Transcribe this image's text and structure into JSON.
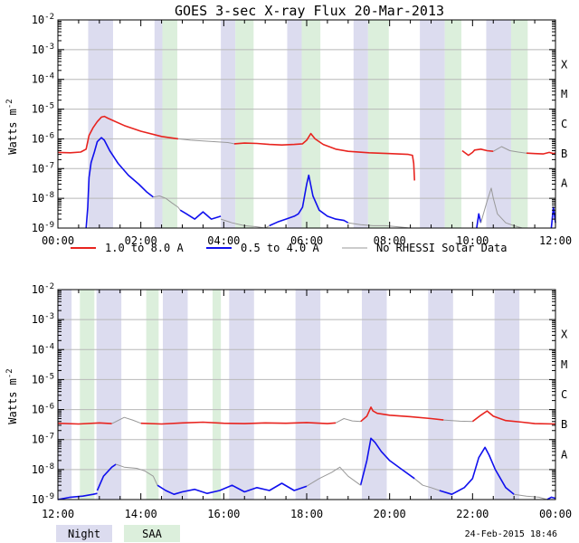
{
  "title": "GOES 3-sec X-ray Flux  20-Mar-2013",
  "footer_date": "24-Feb-2015 18:46",
  "colors": {
    "long_channel": "#e8241f",
    "short_channel": "#1010ee",
    "no_rhessi": "#999999",
    "night_band": "#dcdcef",
    "saa_band": "#dcefdc",
    "gridline": "#b8b8b8"
  },
  "legend": {
    "long_channel": "1.0 to 8.0 A",
    "short_channel": "0.5 to 4.0 A",
    "no_rhessi": "No RHESSI Solar Data",
    "night": "Night",
    "saa": "SAA"
  },
  "chart_data": [
    {
      "type": "line",
      "panel": "top",
      "title": "GOES 3-sec X-ray Flux  20-Mar-2013",
      "xlabel": "",
      "ylabel": "Watts m^-2",
      "ylabel_base": "Watts m",
      "ylabel_exp": "-2",
      "y_scale": "log",
      "ylim": [
        1e-09,
        0.01
      ],
      "xlim_hours": [
        0,
        12
      ],
      "x_tick_labels": [
        "00:00",
        "02:00",
        "04:00",
        "06:00",
        "08:00",
        "10:00",
        "12:00"
      ],
      "y_tick_labels": [
        {
          "base": "10",
          "exp": "-9"
        },
        {
          "base": "10",
          "exp": "-8"
        },
        {
          "base": "10",
          "exp": "-7"
        },
        {
          "base": "10",
          "exp": "-6"
        },
        {
          "base": "10",
          "exp": "-5"
        },
        {
          "base": "10",
          "exp": "-4"
        },
        {
          "base": "10",
          "exp": "-3"
        },
        {
          "base": "10",
          "exp": "-2"
        }
      ],
      "flare_classes": [
        "A",
        "B",
        "C",
        "M",
        "X"
      ],
      "night_bands_hours": [
        [
          0.73,
          1.33
        ],
        [
          2.33,
          2.52
        ],
        [
          3.93,
          4.28
        ],
        [
          5.53,
          5.88
        ],
        [
          7.13,
          7.48
        ],
        [
          8.73,
          9.33
        ],
        [
          10.33,
          10.93
        ]
      ],
      "saa_bands_hours": [
        [
          2.52,
          2.88
        ],
        [
          4.28,
          4.72
        ],
        [
          5.88,
          6.33
        ],
        [
          7.48,
          7.98
        ],
        [
          9.33,
          9.73
        ],
        [
          10.93,
          11.33
        ]
      ],
      "series": [
        {
          "name": "1.0 to 8.0 A",
          "color": "#e8241f",
          "segments": [
            {
              "x": [
                0.0,
                0.3,
                0.55,
                0.68,
                0.75,
                0.85,
                0.95,
                1.05,
                1.12,
                1.2,
                1.35,
                1.6,
                2.0,
                2.5,
                2.9
              ],
              "y": [
                3.5e-07,
                3.4e-07,
                3.6e-07,
                4.5e-07,
                1.3e-06,
                2.4e-06,
                3.8e-06,
                5.4e-06,
                5.7e-06,
                5e-06,
                4e-06,
                2.8e-06,
                1.8e-06,
                1.2e-06,
                1e-06
              ]
            },
            {
              "x": [
                4.25,
                4.5,
                4.8,
                5.1,
                5.4,
                5.7,
                5.9,
                6.0,
                6.1,
                6.2,
                6.4,
                6.7,
                7.0,
                7.5,
                8.0,
                8.45,
                8.55,
                8.58,
                8.6
              ],
              "y": [
                6.8e-07,
                7.2e-07,
                7e-07,
                6.5e-07,
                6.2e-07,
                6.5e-07,
                6.8e-07,
                9e-07,
                1.5e-06,
                1e-06,
                6.5e-07,
                4.5e-07,
                3.8e-07,
                3.4e-07,
                3.2e-07,
                3e-07,
                2.8e-07,
                1.5e-07,
                4e-08
              ]
            },
            {
              "x": [
                9.75,
                9.9,
                10.0,
                10.05,
                10.2,
                10.35,
                10.5
              ],
              "y": [
                4e-07,
                2.8e-07,
                3.5e-07,
                4.2e-07,
                4.5e-07,
                4e-07,
                3.8e-07
              ]
            },
            {
              "x": [
                11.3,
                11.5,
                11.7,
                11.85,
                11.95,
                12.0
              ],
              "y": [
                3.3e-07,
                3.2e-07,
                3.1e-07,
                3.5e-07,
                3.2e-07,
                3.3e-07
              ]
            }
          ]
        },
        {
          "name": "0.5 to 4.0 A",
          "color": "#1010ee",
          "segments": [
            {
              "x": [
                0.68,
                0.72,
                0.75,
                0.8,
                0.88,
                0.95,
                1.05,
                1.12,
                1.25,
                1.45,
                1.7,
                1.95,
                2.15,
                2.3
              ],
              "y": [
                1e-09,
                5e-09,
                5e-08,
                1.6e-07,
                3.6e-07,
                8e-07,
                1.1e-06,
                9e-07,
                4e-07,
                1.5e-07,
                6e-08,
                3e-08,
                1.6e-08,
                1.1e-08
              ]
            },
            {
              "x": [
                2.95,
                3.1,
                3.3,
                3.5,
                3.7,
                3.93
              ],
              "y": [
                4e-09,
                3e-09,
                2e-09,
                3.5e-09,
                2e-09,
                2.5e-09
              ]
            },
            {
              "x": [
                5.1,
                5.3,
                5.5,
                5.7,
                5.8,
                5.9,
                6.0,
                6.05,
                6.15,
                6.3,
                6.5,
                6.7,
                6.9,
                7.0
              ],
              "y": [
                1.2e-09,
                1.6e-09,
                2e-09,
                2.5e-09,
                3e-09,
                5e-09,
                3e-08,
                6e-08,
                1.2e-08,
                4e-09,
                2.5e-09,
                2e-09,
                1.8e-09,
                1.5e-09
              ]
            },
            {
              "x": [
                10.1,
                10.15,
                10.2
              ],
              "y": [
                1e-09,
                3e-09,
                1.5e-09
              ]
            },
            {
              "x": [
                11.9,
                11.95,
                12.0
              ],
              "y": [
                1e-09,
                5e-09,
                1.5e-09
              ]
            }
          ]
        },
        {
          "name": "No RHESSI Solar Data (1.0 to 8.0 A)",
          "color": "#999999",
          "segments": [
            {
              "x": [
                2.9,
                3.2,
                3.5,
                3.8,
                4.1,
                4.25
              ],
              "y": [
                1e-06,
                9e-07,
                8.5e-07,
                8e-07,
                7.5e-07,
                6.8e-07
              ]
            },
            {
              "x": [
                10.5,
                10.7,
                10.9,
                11.1,
                11.3
              ],
              "y": [
                3.8e-07,
                5.5e-07,
                4e-07,
                3.6e-07,
                3.3e-07
              ]
            }
          ]
        },
        {
          "name": "No RHESSI Solar Data (0.5 to 4.0 A)",
          "color": "#999999",
          "segments": [
            {
              "x": [
                2.3,
                2.45,
                2.6,
                2.75,
                2.9,
                2.95
              ],
              "y": [
                1.1e-08,
                1.2e-08,
                1e-08,
                7e-09,
                5e-09,
                4e-09
              ]
            },
            {
              "x": [
                3.93,
                4.2,
                4.5,
                4.8,
                5.0,
                5.1
              ],
              "y": [
                2e-09,
                1.5e-09,
                1.2e-09,
                1.1e-09,
                1e-09,
                1.2e-09
              ]
            },
            {
              "x": [
                7.0,
                7.3,
                7.6,
                7.9,
                8.2,
                8.5
              ],
              "y": [
                1.5e-09,
                1.3e-09,
                1.2e-09,
                1.2e-09,
                1.1e-09,
                1e-09
              ]
            },
            {
              "x": [
                10.2,
                10.35,
                10.45,
                10.5,
                10.6,
                10.8,
                11.0,
                11.2
              ],
              "y": [
                1.5e-09,
                8e-09,
                2.2e-08,
                1e-08,
                3e-09,
                1.5e-09,
                1.2e-09,
                1e-09
              ]
            }
          ]
        }
      ]
    },
    {
      "type": "line",
      "panel": "bottom",
      "title": "",
      "xlabel": "",
      "ylabel": "Watts m^-2",
      "ylabel_base": "Watts m",
      "ylabel_exp": "-2",
      "y_scale": "log",
      "ylim": [
        1e-09,
        0.01
      ],
      "xlim_hours": [
        12,
        24
      ],
      "x_tick_labels": [
        "12:00",
        "14:00",
        "16:00",
        "18:00",
        "20:00",
        "22:00",
        "00:00"
      ],
      "y_tick_labels": [
        {
          "base": "10",
          "exp": "-9"
        },
        {
          "base": "10",
          "exp": "-8"
        },
        {
          "base": "10",
          "exp": "-7"
        },
        {
          "base": "10",
          "exp": "-6"
        },
        {
          "base": "10",
          "exp": "-5"
        },
        {
          "base": "10",
          "exp": "-4"
        },
        {
          "base": "10",
          "exp": "-3"
        },
        {
          "base": "10",
          "exp": "-2"
        }
      ],
      "flare_classes": [
        "A",
        "B",
        "C",
        "M",
        "X"
      ],
      "night_bands_hours": [
        [
          12.0,
          12.33
        ],
        [
          12.93,
          13.53
        ],
        [
          14.53,
          15.13
        ],
        [
          16.13,
          16.73
        ],
        [
          17.73,
          18.33
        ],
        [
          19.33,
          19.93
        ],
        [
          20.93,
          21.53
        ],
        [
          22.53,
          23.13
        ]
      ],
      "saa_bands_hours": [
        [
          12.53,
          12.88
        ],
        [
          14.13,
          14.43
        ],
        [
          15.73,
          15.93
        ]
      ],
      "series": [
        {
          "name": "1.0 to 8.0 A",
          "color": "#e8241f",
          "segments": [
            {
              "x": [
                12.0,
                12.5,
                13.0,
                13.3
              ],
              "y": [
                3.5e-07,
                3.3e-07,
                3.6e-07,
                3.4e-07
              ]
            },
            {
              "x": [
                14.0,
                14.5,
                15.0,
                15.5,
                16.0,
                16.5,
                17.0,
                17.5,
                18.0,
                18.5,
                18.7
              ],
              "y": [
                3.5e-07,
                3.3e-07,
                3.6e-07,
                3.8e-07,
                3.5e-07,
                3.4e-07,
                3.6e-07,
                3.5e-07,
                3.7e-07,
                3.4e-07,
                3.6e-07
              ]
            },
            {
              "x": [
                19.3,
                19.45,
                19.55,
                19.6,
                19.7,
                20.0,
                20.5,
                21.0,
                21.3
              ],
              "y": [
                4e-07,
                6e-07,
                1.2e-06,
                9e-07,
                7.5e-07,
                6.5e-07,
                5.8e-07,
                5e-07,
                4.5e-07
              ]
            },
            {
              "x": [
                22.0,
                22.2,
                22.35,
                22.5,
                22.8,
                23.2,
                23.5,
                24.0
              ],
              "y": [
                4e-07,
                6.5e-07,
                9e-07,
                6e-07,
                4.3e-07,
                3.8e-07,
                3.4e-07,
                3.3e-07
              ]
            }
          ]
        },
        {
          "name": "0.5 to 4.0 A",
          "color": "#1010ee",
          "segments": [
            {
              "x": [
                12.0,
                12.3,
                12.6,
                12.85,
                12.95
              ],
              "y": [
                1e-09,
                1.2e-09,
                1.3e-09,
                1.5e-09,
                1.6e-09
              ]
            },
            {
              "x": [
                12.95,
                13.1,
                13.3,
                13.4
              ],
              "y": [
                2e-09,
                6e-09,
                1.2e-08,
                1.5e-08
              ]
            },
            {
              "x": [
                14.4,
                14.6,
                14.8,
                15.0,
                15.3,
                15.6,
                15.9,
                16.2,
                16.5,
                16.8,
                17.1,
                17.4,
                17.7,
                18.0
              ],
              "y": [
                3e-09,
                2e-09,
                1.5e-09,
                1.8e-09,
                2.2e-09,
                1.6e-09,
                2e-09,
                3e-09,
                1.8e-09,
                2.5e-09,
                2e-09,
                3.5e-09,
                2e-09,
                2.8e-09
              ]
            },
            {
              "x": [
                19.3,
                19.45,
                19.55,
                19.65,
                19.8,
                20.0,
                20.3,
                20.6
              ],
              "y": [
                3e-09,
                2e-08,
                1.1e-07,
                8e-08,
                4e-08,
                2e-08,
                1e-08,
                5e-09
              ]
            },
            {
              "x": [
                21.2,
                21.5,
                21.8,
                22.0,
                22.15,
                22.3,
                22.4,
                22.55,
                22.8,
                23.0
              ],
              "y": [
                2e-09,
                1.5e-09,
                2.5e-09,
                5e-09,
                2.5e-08,
                5.5e-08,
                3e-08,
                1e-08,
                2.5e-09,
                1.5e-09
              ]
            },
            {
              "x": [
                23.8,
                23.9,
                24.0
              ],
              "y": [
                1e-09,
                1.2e-09,
                1.1e-09
              ]
            }
          ]
        },
        {
          "name": "No RHESSI Solar Data (1.0 to 8.0 A)",
          "color": "#999999",
          "segments": [
            {
              "x": [
                13.3,
                13.6,
                13.8,
                14.0
              ],
              "y": [
                3.4e-07,
                5.5e-07,
                4.5e-07,
                3.5e-07
              ]
            },
            {
              "x": [
                18.7,
                18.9,
                19.1,
                19.3
              ],
              "y": [
                3.6e-07,
                5e-07,
                4.2e-07,
                4e-07
              ]
            },
            {
              "x": [
                21.3,
                21.5,
                21.7,
                22.0
              ],
              "y": [
                4.5e-07,
                4.3e-07,
                4.1e-07,
                4e-07
              ]
            }
          ]
        },
        {
          "name": "No RHESSI Solar Data (0.5 to 4.0 A)",
          "color": "#999999",
          "segments": [
            {
              "x": [
                13.4,
                13.6,
                13.9,
                14.1,
                14.3,
                14.4
              ],
              "y": [
                1.5e-08,
                1.2e-08,
                1.1e-08,
                9e-09,
                6e-09,
                3e-09
              ]
            },
            {
              "x": [
                18.0,
                18.3,
                18.6,
                18.8,
                19.0,
                19.3
              ],
              "y": [
                2.8e-09,
                5e-09,
                8e-09,
                1.2e-08,
                6e-09,
                3e-09
              ]
            },
            {
              "x": [
                20.6,
                20.8,
                21.0,
                21.2
              ],
              "y": [
                5e-09,
                3e-09,
                2.5e-09,
                2e-09
              ]
            },
            {
              "x": [
                23.0,
                23.3,
                23.6,
                23.8
              ],
              "y": [
                1.5e-09,
                1.3e-09,
                1.2e-09,
                1e-09
              ]
            }
          ]
        }
      ]
    }
  ]
}
